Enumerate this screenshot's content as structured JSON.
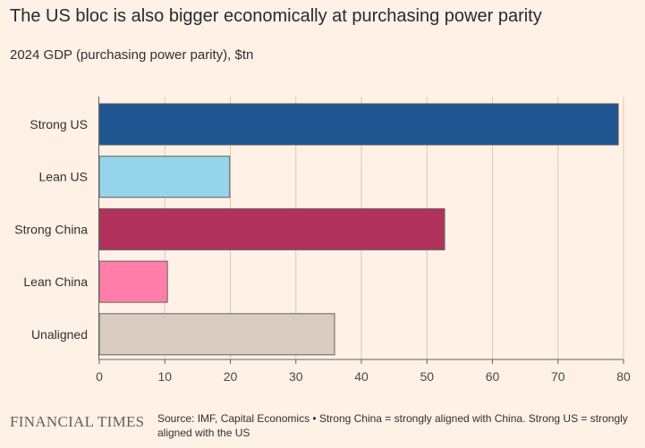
{
  "title": "The US bloc is also bigger economically at purchasing power parity",
  "subtitle": "2024 GDP (purchasing power parity), $tn",
  "footer": {
    "logo": "FINANCIAL TIMES",
    "source": "Source: IMF, Capital Economics • Strong China = strongly aligned with China. Strong US = strongly aligned with the US"
  },
  "chart_data": {
    "type": "bar",
    "orientation": "horizontal",
    "categories": [
      "Strong US",
      "Lean US",
      "Strong China",
      "Lean China",
      "Unaligned"
    ],
    "values": [
      79.2,
      19.9,
      52.7,
      10.4,
      35.9
    ],
    "colors": [
      "#1f5591",
      "#96d5e9",
      "#b1325c",
      "#ff7faa",
      "#d9ccc3"
    ],
    "xlim": [
      0,
      80
    ],
    "xticks": [
      "0",
      "10",
      "20",
      "30",
      "40",
      "50",
      "60",
      "70",
      "80"
    ],
    "grid": true
  }
}
